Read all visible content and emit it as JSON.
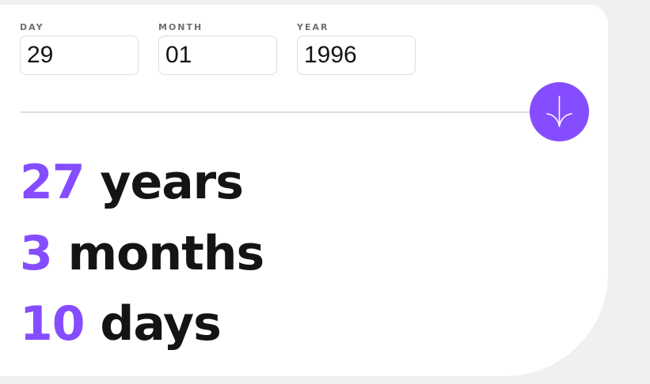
{
  "form": {
    "day": {
      "label": "DAY",
      "value": "29"
    },
    "month": {
      "label": "MONTH",
      "value": "01"
    },
    "year": {
      "label": "YEAR",
      "value": "1996"
    }
  },
  "submit": {
    "icon": "arrow-down-icon",
    "color": "#854dff"
  },
  "results": {
    "years": {
      "value": "27",
      "unit": "years"
    },
    "months": {
      "value": "3",
      "unit": "months"
    },
    "days": {
      "value": "10",
      "unit": "days"
    }
  },
  "colors": {
    "accent": "#854dff",
    "text": "#141414",
    "label": "#716f6f",
    "border": "#dcdcdc",
    "background": "#f0f0f0"
  }
}
